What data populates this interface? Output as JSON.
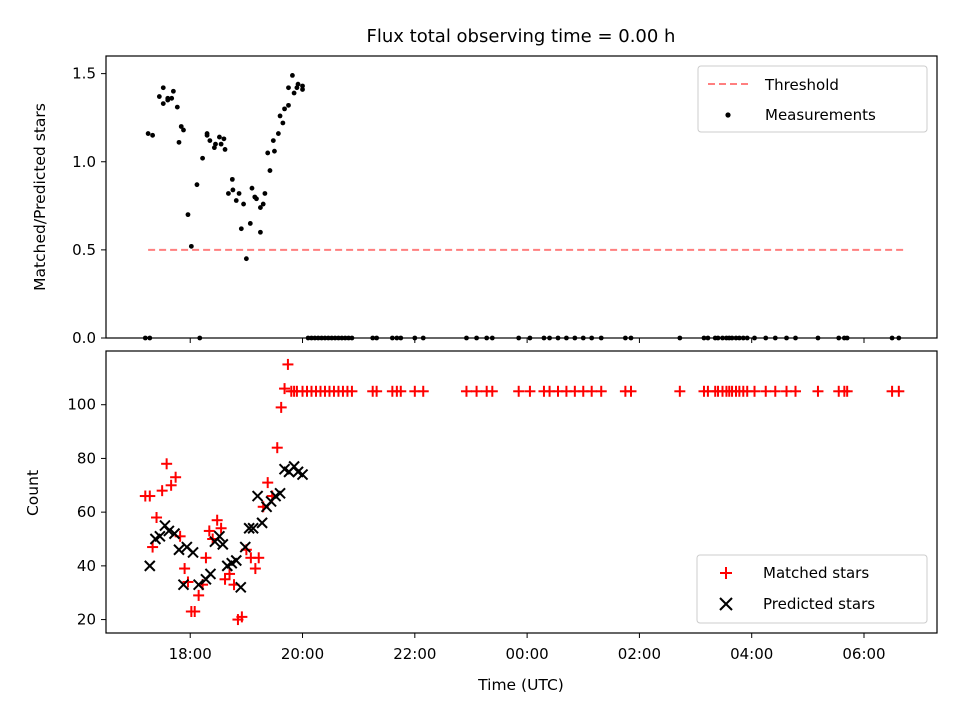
{
  "chart_data": [
    {
      "type": "scatter",
      "title": "Flux total observing time = 0.00 h",
      "xlabel": "",
      "ylabel": "Matched/Predicted stars",
      "xlim": [
        16.5,
        31.3
      ],
      "ylim": [
        0,
        1.6
      ],
      "x_unit": "hours since 00:00 UTC of first night",
      "yticks": [
        0.0,
        0.5,
        1.0,
        1.5
      ],
      "ytick_labels": [
        "0.0",
        "0.5",
        "1.0",
        "1.5"
      ],
      "legend": {
        "placement": "upper-right",
        "entries": [
          "Threshold",
          "Measurements"
        ]
      },
      "threshold": {
        "name": "Threshold",
        "value": 0.5,
        "x": [
          17.25,
          30.7
        ],
        "color": "#ff7f7f",
        "style": "dashed"
      },
      "series": [
        {
          "name": "Measurements",
          "color": "#000000",
          "marker": "dot",
          "x": [
            17.25,
            17.33,
            17.45,
            17.52,
            17.6,
            17.7,
            17.8,
            17.88,
            17.96,
            18.02,
            18.12,
            18.22,
            18.3,
            18.43,
            18.52,
            18.6,
            18.68,
            18.75,
            18.82,
            18.91,
            19.0,
            19.1,
            19.18,
            19.25,
            19.3,
            19.38,
            19.48,
            19.6,
            19.68,
            19.75,
            19.82,
            19.9,
            20.0,
            17.52,
            17.6,
            17.67,
            17.77,
            17.84,
            18.3,
            18.35,
            18.45,
            18.55,
            18.62,
            18.76,
            18.87,
            18.95,
            19.07,
            19.15,
            19.25,
            19.33,
            19.42,
            19.5,
            19.57,
            19.65,
            19.75,
            19.85,
            19.92,
            20.0,
            17.2,
            17.28,
            18.17,
            20.1,
            20.16,
            20.22,
            20.28,
            20.34,
            20.4,
            20.46,
            20.52,
            20.58,
            20.64,
            20.7,
            20.76,
            20.82,
            20.88,
            21.25,
            21.32,
            21.6,
            21.68,
            21.75,
            22.0,
            22.15,
            22.92,
            23.1,
            23.28,
            23.38,
            23.85,
            24.05,
            24.3,
            24.4,
            24.55,
            24.7,
            24.85,
            25.0,
            25.15,
            25.32,
            25.75,
            25.85,
            26.72,
            27.15,
            27.22,
            27.35,
            27.4,
            27.48,
            27.55,
            27.6,
            27.65,
            27.72,
            27.78,
            27.85,
            27.92,
            28.05,
            28.25,
            28.42,
            28.62,
            28.78,
            29.18,
            29.55,
            29.65,
            29.7,
            30.5,
            30.62
          ],
          "y": [
            1.16,
            1.15,
            1.37,
            1.42,
            1.35,
            1.4,
            1.11,
            1.18,
            0.7,
            0.52,
            0.87,
            1.02,
            1.16,
            1.08,
            1.14,
            1.13,
            0.82,
            0.9,
            0.78,
            0.62,
            0.45,
            0.85,
            0.79,
            0.6,
            0.76,
            1.05,
            1.12,
            1.26,
            1.3,
            1.42,
            1.49,
            1.42,
            1.43,
            1.33,
            1.36,
            1.36,
            1.31,
            1.2,
            1.15,
            1.12,
            1.1,
            1.1,
            1.07,
            0.84,
            0.82,
            0.76,
            0.65,
            0.8,
            0.74,
            0.82,
            0.95,
            1.06,
            1.16,
            1.22,
            1.32,
            1.39,
            1.44,
            1.41,
            0.0,
            0.0,
            0.0,
            0.0,
            0.0,
            0.0,
            0.0,
            0.0,
            0.0,
            0.0,
            0.0,
            0.0,
            0.0,
            0.0,
            0.0,
            0.0,
            0.0,
            0.0,
            0.0,
            0.0,
            0.0,
            0.0,
            0.0,
            0.0,
            0.0,
            0.0,
            0.0,
            0.0,
            0.0,
            0.0,
            0.0,
            0.0,
            0.0,
            0.0,
            0.0,
            0.0,
            0.0,
            0.0,
            0.0,
            0.0,
            0.0,
            0.0,
            0.0,
            0.0,
            0.0,
            0.0,
            0.0,
            0.0,
            0.0,
            0.0,
            0.0,
            0.0,
            0.0,
            0.0,
            0.0,
            0.0,
            0.0,
            0.0,
            0.0,
            0.0,
            0.0,
            0.0,
            0.0,
            0.0
          ]
        }
      ]
    },
    {
      "type": "scatter",
      "title": "",
      "xlabel": "Time (UTC)",
      "ylabel": "Count",
      "xlim": [
        16.5,
        31.3
      ],
      "ylim": [
        15,
        120
      ],
      "x_unit": "hours since 00:00 UTC of first night",
      "xticks": [
        18,
        20,
        22,
        24,
        26,
        28,
        30
      ],
      "xtick_labels": [
        "18:00",
        "20:00",
        "22:00",
        "00:00",
        "02:00",
        "04:00",
        "06:00"
      ],
      "yticks": [
        20,
        40,
        60,
        80,
        100
      ],
      "ytick_labels": [
        "20",
        "40",
        "60",
        "80",
        "100"
      ],
      "legend": {
        "placement": "lower-right",
        "entries": [
          "Matched stars",
          "Predicted stars"
        ]
      },
      "series": [
        {
          "name": "Matched stars",
          "color": "#ff0000",
          "marker": "plus",
          "x": [
            17.2,
            17.28,
            17.33,
            17.4,
            17.5,
            17.58,
            17.66,
            17.74,
            17.82,
            17.9,
            17.96,
            18.02,
            18.08,
            18.15,
            18.22,
            18.28,
            18.34,
            18.4,
            18.48,
            18.55,
            18.62,
            18.7,
            18.78,
            18.85,
            18.92,
            19.0,
            19.08,
            19.16,
            19.22,
            19.3,
            19.38,
            19.46,
            19.55,
            19.62,
            19.68,
            19.74,
            19.8,
            19.85,
            19.9,
            20.0,
            20.08,
            20.16,
            20.24,
            20.32,
            20.4,
            20.48,
            20.56,
            20.64,
            20.72,
            20.8,
            20.88,
            21.25,
            21.32,
            21.6,
            21.68,
            21.75,
            22.0,
            22.15,
            22.92,
            23.1,
            23.28,
            23.38,
            23.85,
            24.05,
            24.3,
            24.4,
            24.55,
            24.7,
            24.85,
            25.0,
            25.15,
            25.32,
            25.75,
            25.85,
            26.72,
            27.15,
            27.22,
            27.35,
            27.4,
            27.48,
            27.55,
            27.6,
            27.65,
            27.72,
            27.78,
            27.85,
            27.92,
            28.05,
            28.25,
            28.42,
            28.62,
            28.78,
            29.18,
            29.55,
            29.65,
            29.7,
            30.5,
            30.62
          ],
          "y": [
            66,
            66,
            47,
            58,
            68,
            78,
            70,
            73,
            51,
            39,
            34,
            23,
            23,
            29,
            33,
            43,
            53,
            50,
            57,
            54,
            35,
            37,
            33,
            20,
            21,
            46,
            43,
            39,
            43,
            62,
            71,
            66,
            84,
            99,
            106,
            115,
            105,
            105,
            105,
            105,
            105,
            105,
            105,
            105,
            105,
            105,
            105,
            105,
            105,
            105,
            105,
            105,
            105,
            105,
            105,
            105,
            105,
            105,
            105,
            105,
            105,
            105,
            105,
            105,
            105,
            105,
            105,
            105,
            105,
            105,
            105,
            105,
            105,
            105,
            105,
            105,
            105,
            105,
            105,
            105,
            105,
            105,
            105,
            105,
            105,
            105,
            105,
            105,
            105,
            105,
            105,
            105,
            105,
            105,
            105,
            105,
            105,
            105
          ]
        },
        {
          "name": "Predicted stars",
          "color": "#000000",
          "marker": "x",
          "x": [
            17.28,
            17.38,
            17.46,
            17.55,
            17.62,
            17.72,
            17.8,
            17.88,
            17.94,
            18.05,
            18.15,
            18.28,
            18.36,
            18.44,
            18.52,
            18.58,
            18.66,
            18.74,
            18.82,
            18.9,
            18.98,
            19.05,
            19.12,
            19.2,
            19.28,
            19.36,
            19.44,
            19.52,
            19.6,
            19.68,
            19.76,
            19.85,
            19.92,
            20.0
          ],
          "y": [
            40,
            50,
            51,
            55,
            53,
            52,
            46,
            33,
            47,
            45,
            33,
            35,
            37,
            49,
            51,
            48,
            40,
            41,
            42,
            32,
            47,
            54,
            54,
            66,
            56,
            62,
            64,
            66,
            67,
            76,
            75,
            77,
            75,
            74
          ]
        }
      ]
    }
  ]
}
